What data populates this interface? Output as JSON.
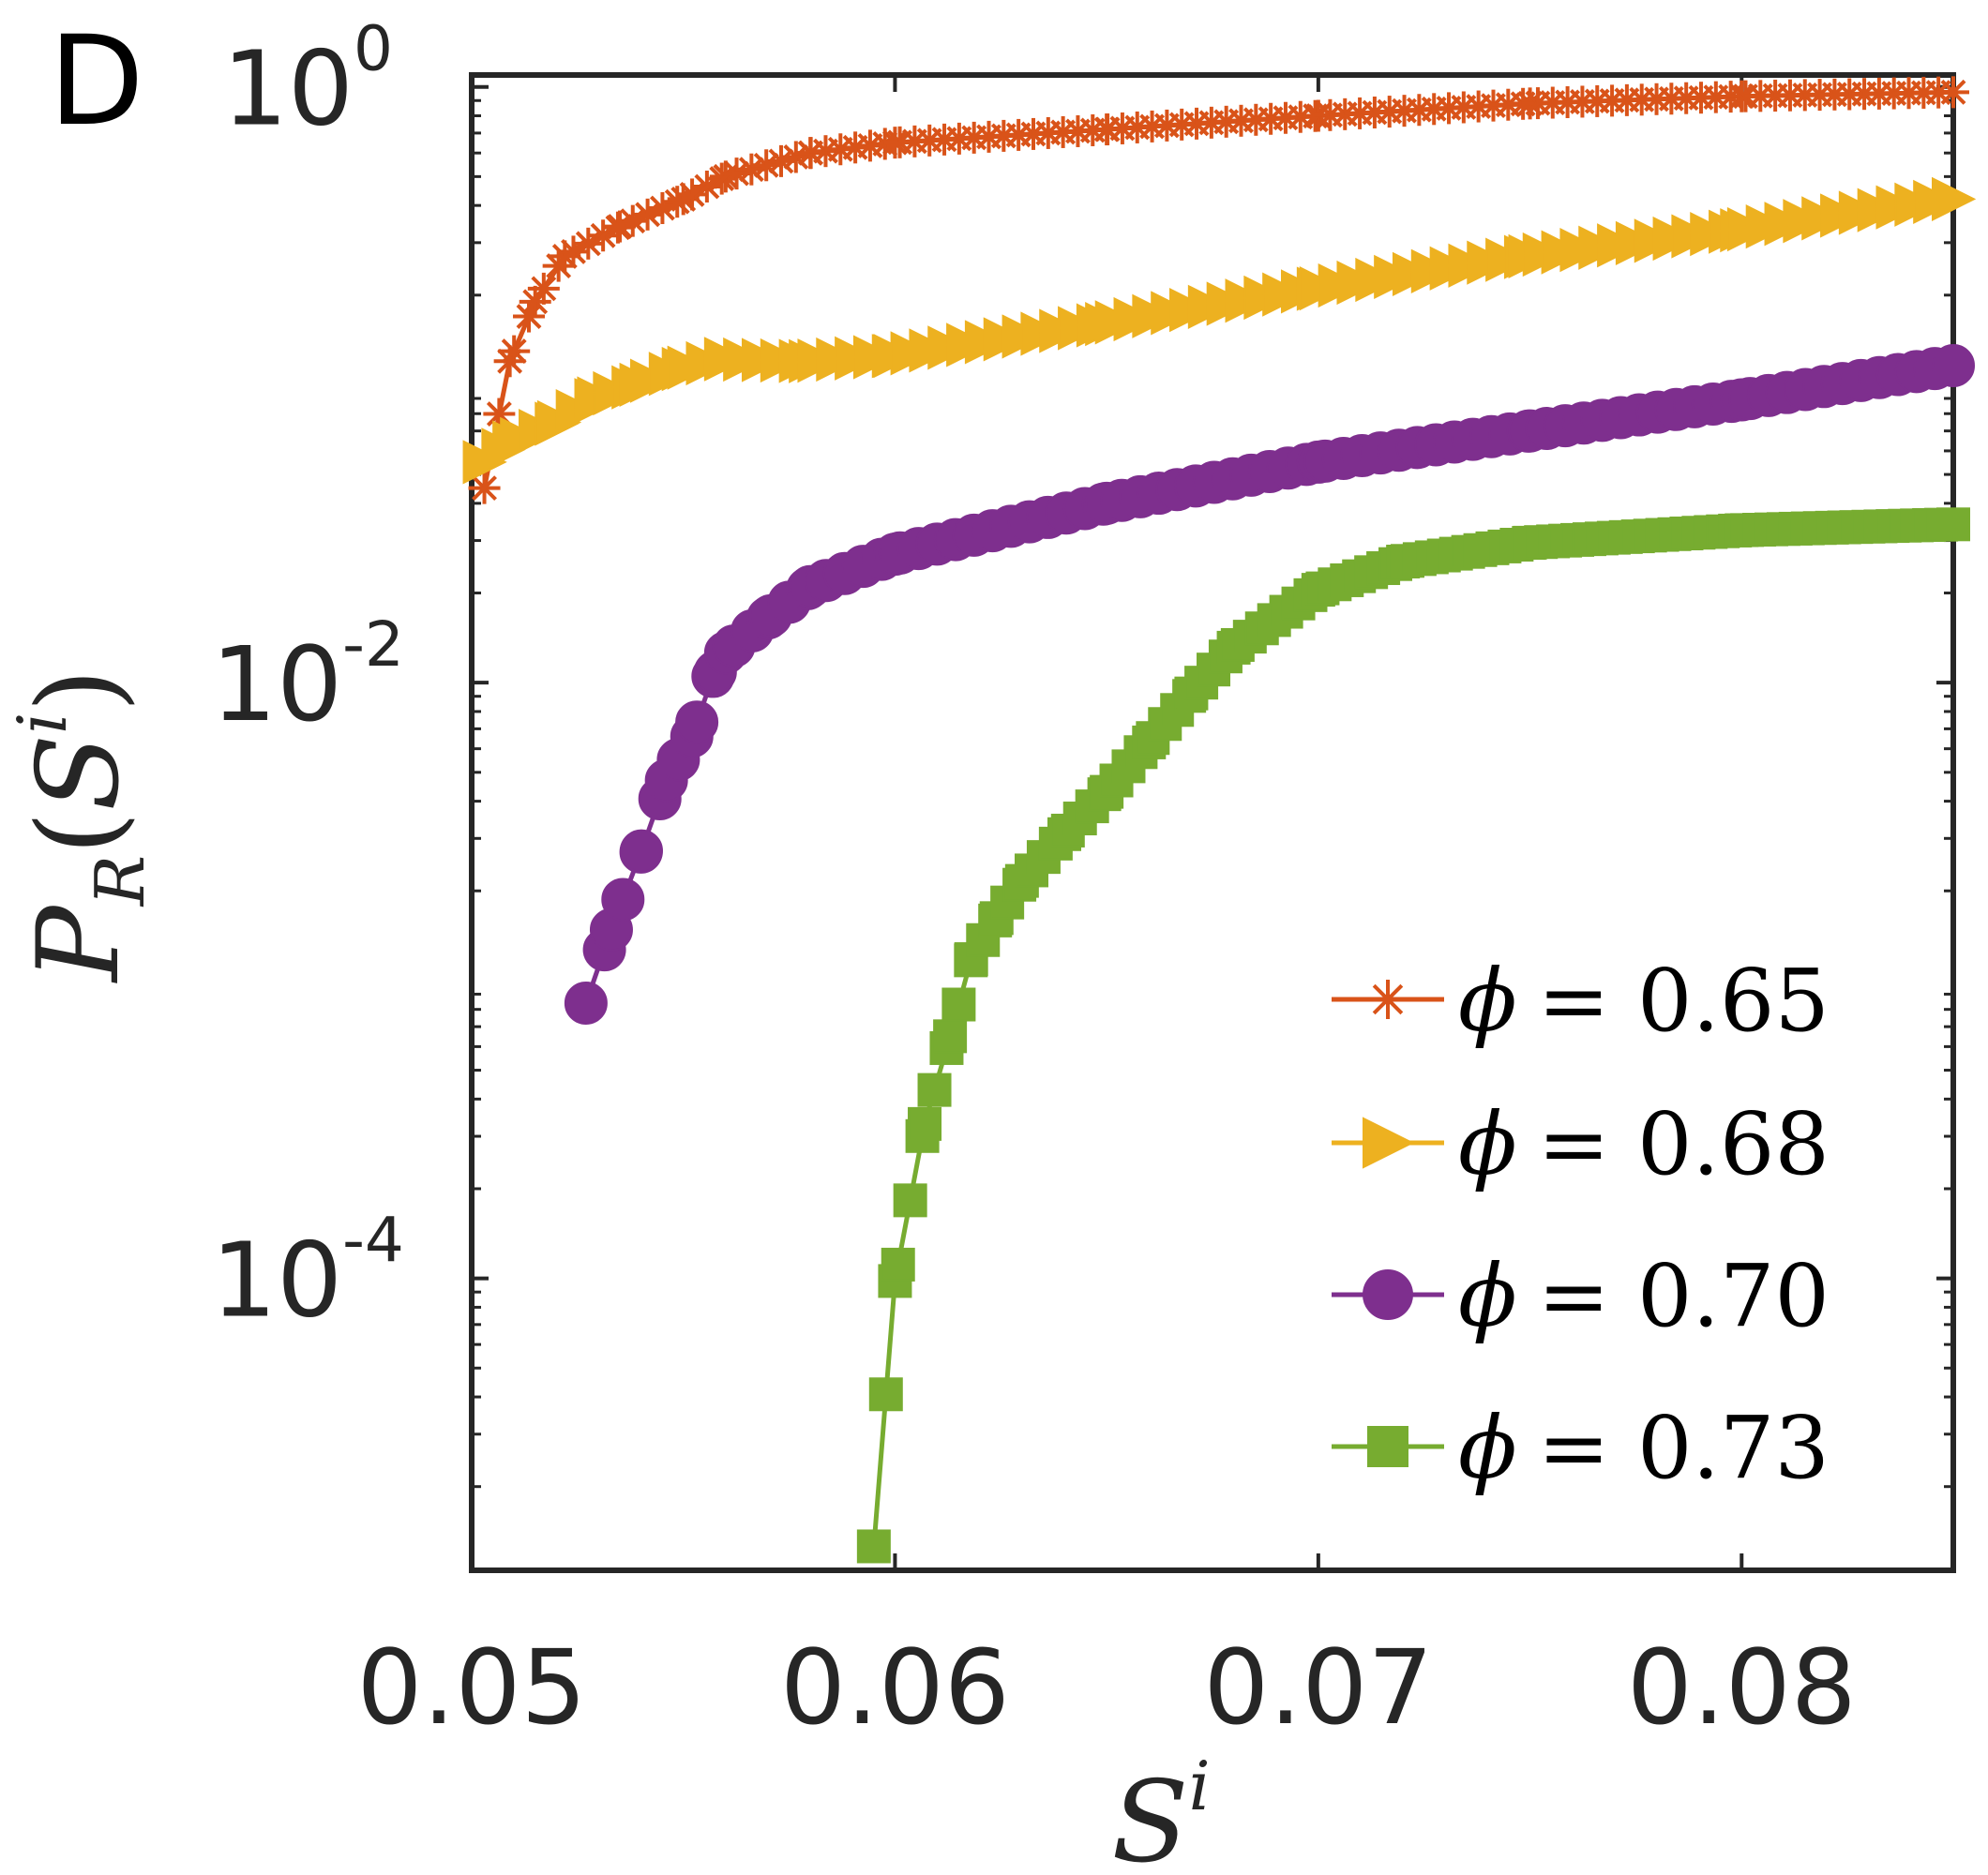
{
  "panel_label": "D",
  "chart_data": {
    "type": "line",
    "title": "",
    "xlabel": {
      "base": "S",
      "sup": "i"
    },
    "ylabel": {
      "base": "P",
      "sub": "R",
      "arg": "S",
      "arg_sup": "i"
    },
    "xlim": [
      0.05,
      0.085
    ],
    "ylim_log10": [
      -4.98,
      0.04
    ],
    "yscale": "log",
    "x_ticks": [
      "0.05",
      "0.06",
      "0.07",
      "0.08"
    ],
    "x_tick_values": [
      0.05,
      0.06,
      0.07,
      0.08
    ],
    "y_ticks": [
      {
        "value": 0.0001,
        "base": "10",
        "exp": "-4"
      },
      {
        "value": 0.01,
        "base": "10",
        "exp": "-2"
      },
      {
        "value": 1,
        "base": "10",
        "exp": "0"
      }
    ],
    "legend_position": "bottom-right",
    "series": [
      {
        "name": "ϕ = 0.65",
        "phi_label": "ϕ",
        "value_label": "= 0.65",
        "color": "#D95319",
        "marker": "asterisk",
        "x_start": 0.0503,
        "x_end": 0.085,
        "n_points": 100,
        "y_points": [
          [
            0.0503,
            0.045
          ],
          [
            0.0509,
            0.12
          ],
          [
            0.0515,
            0.19
          ],
          [
            0.0522,
            0.27
          ],
          [
            0.0535,
            0.34
          ],
          [
            0.055,
            0.42
          ],
          [
            0.056,
            0.5
          ],
          [
            0.058,
            0.6
          ],
          [
            0.06,
            0.65
          ],
          [
            0.065,
            0.72
          ],
          [
            0.07,
            0.8
          ],
          [
            0.075,
            0.88
          ],
          [
            0.08,
            0.93
          ],
          [
            0.085,
            0.96
          ]
        ]
      },
      {
        "name": "ϕ = 0.68",
        "phi_label": "ϕ",
        "value_label": "= 0.68",
        "color": "#EDB120",
        "marker": "triangle-right",
        "x_start": 0.0503,
        "x_end": 0.085,
        "n_points": 80,
        "y_points": [
          [
            0.0503,
            0.055
          ],
          [
            0.051,
            0.064
          ],
          [
            0.052,
            0.074
          ],
          [
            0.053,
            0.09
          ],
          [
            0.054,
            0.1
          ],
          [
            0.055,
            0.113
          ],
          [
            0.056,
            0.122
          ],
          [
            0.058,
            0.12
          ],
          [
            0.06,
            0.125
          ],
          [
            0.065,
            0.16
          ],
          [
            0.07,
            0.21
          ],
          [
            0.075,
            0.27
          ],
          [
            0.08,
            0.33
          ],
          [
            0.085,
            0.42
          ]
        ]
      },
      {
        "name": "ϕ = 0.70",
        "phi_label": "ϕ",
        "value_label": "= 0.70",
        "color": "#7E2F8E",
        "marker": "circle",
        "x_start": 0.0527,
        "x_end": 0.085,
        "n_points": 75,
        "y_points": [
          [
            0.0527,
            0.00084
          ],
          [
            0.0533,
            0.00148
          ],
          [
            0.054,
            0.0027
          ],
          [
            0.0546,
            0.0047
          ],
          [
            0.0552,
            0.0066
          ],
          [
            0.0557,
            0.0105
          ],
          [
            0.056,
            0.0126
          ],
          [
            0.057,
            0.0165
          ],
          [
            0.058,
            0.021
          ],
          [
            0.06,
            0.027
          ],
          [
            0.065,
            0.04
          ],
          [
            0.07,
            0.055
          ],
          [
            0.075,
            0.07
          ],
          [
            0.08,
            0.089
          ],
          [
            0.085,
            0.116
          ]
        ]
      },
      {
        "name": "ϕ = 0.73",
        "phi_label": "ϕ",
        "value_label": "= 0.73",
        "color": "#77AC30",
        "marker": "square",
        "x_start": 0.0595,
        "x_end": 0.085,
        "n_points": 90,
        "y_points": [
          [
            0.0595,
            1.26e-05
          ],
          [
            0.06,
            9.8e-05
          ],
          [
            0.0607,
            0.00033
          ],
          [
            0.0613,
            0.00065
          ],
          [
            0.0618,
            0.00118
          ],
          [
            0.0624,
            0.00162
          ],
          [
            0.063,
            0.00216
          ],
          [
            0.064,
            0.0031
          ],
          [
            0.065,
            0.0043
          ],
          [
            0.066,
            0.0063
          ],
          [
            0.067,
            0.0092
          ],
          [
            0.068,
            0.0131
          ],
          [
            0.07,
            0.0205
          ],
          [
            0.072,
            0.0255
          ],
          [
            0.075,
            0.0295
          ],
          [
            0.08,
            0.0325
          ],
          [
            0.085,
            0.034
          ]
        ]
      }
    ]
  }
}
